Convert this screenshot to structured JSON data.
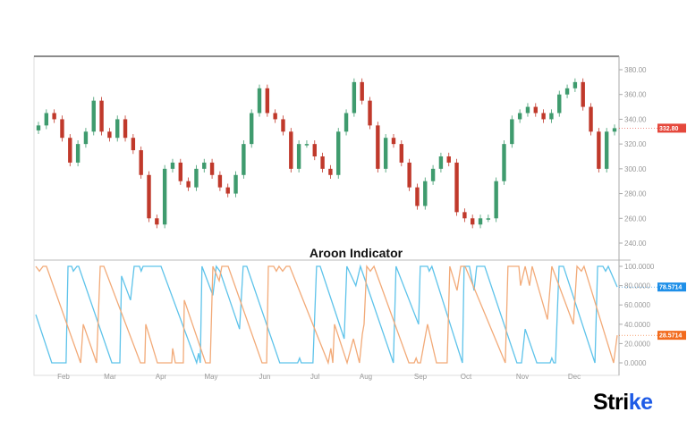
{
  "logo": {
    "text": "Strike",
    "accent_color": "#1e5be6"
  },
  "chart_data": [
    {
      "type": "candlestick",
      "title": "",
      "x_ticks": [
        "Feb",
        "Mar",
        "Apr",
        "May",
        "Jun",
        "Jul",
        "Aug",
        "Sep",
        "Oct",
        "Nov",
        "Dec"
      ],
      "y_ticks": [
        "380.00",
        "360.00",
        "340.00",
        "320.00",
        "300.00",
        "280.00",
        "260.00",
        "240.00"
      ],
      "ylim": [
        232,
        388
      ],
      "last_price_label": "332.80",
      "colors": {
        "up": "#3f9b6e",
        "down": "#c0392b",
        "last_tag": "#e5483c"
      },
      "closes": [
        335,
        345,
        340,
        325,
        305,
        320,
        330,
        355,
        330,
        325,
        340,
        325,
        315,
        295,
        260,
        255,
        300,
        305,
        290,
        285,
        300,
        305,
        295,
        285,
        280,
        295,
        320,
        345,
        365,
        345,
        340,
        330,
        300,
        320,
        320,
        310,
        300,
        295,
        330,
        345,
        370,
        355,
        335,
        300,
        325,
        320,
        305,
        285,
        270,
        290,
        300,
        310,
        305,
        265,
        260,
        255,
        260,
        260,
        290,
        320,
        340,
        345,
        350,
        345,
        340,
        345,
        360,
        365,
        370,
        350,
        330,
        300,
        330,
        332.8
      ]
    },
    {
      "type": "line",
      "title": "Aroon Indicator",
      "x_ticks": [
        "Feb",
        "Mar",
        "Apr",
        "May",
        "Jun",
        "Jul",
        "Aug",
        "Sep",
        "Oct",
        "Nov",
        "Dec"
      ],
      "y_ticks": [
        "100.0000",
        "80.0000",
        "60.0000",
        "40.0000",
        "20.0000",
        "0.0000"
      ],
      "ylim": [
        0,
        100
      ],
      "series": [
        {
          "color": "#5ec3ea",
          "last_label": "78.5714",
          "tag_color": "#1e8fe8",
          "points": [
            [
              0,
              50
            ],
            [
              6.6,
              0
            ],
            [
              12.5,
              0
            ],
            [
              13.3,
              100
            ],
            [
              14.8,
              100
            ],
            [
              15.5,
              95
            ],
            [
              17,
              100
            ],
            [
              17.7,
              100
            ],
            [
              31.4,
              0
            ],
            [
              34.7,
              0
            ],
            [
              35.4,
              90
            ],
            [
              39.1,
              65
            ],
            [
              40.6,
              100
            ],
            [
              42.8,
              100
            ],
            [
              43.5,
              95
            ],
            [
              44.3,
              100
            ],
            [
              51.7,
              100
            ],
            [
              66.4,
              0
            ],
            [
              67.2,
              10
            ],
            [
              67.9,
              0
            ],
            [
              68.6,
              100
            ],
            [
              73.1,
              70
            ],
            [
              74.5,
              100
            ],
            [
              76,
              95
            ],
            [
              84.1,
              35
            ],
            [
              85.6,
              100
            ],
            [
              87.1,
              100
            ],
            [
              100.7,
              0
            ],
            [
              108.1,
              0
            ],
            [
              108.9,
              5
            ],
            [
              109.6,
              0
            ],
            [
              114.4,
              0
            ],
            [
              115.9,
              100
            ],
            [
              117.4,
              100
            ],
            [
              127.3,
              25
            ],
            [
              128.4,
              100
            ],
            [
              132.1,
              80
            ],
            [
              134,
              100
            ],
            [
              147.6,
              0
            ],
            [
              148.7,
              100
            ],
            [
              158,
              40
            ],
            [
              158.7,
              100
            ],
            [
              161.7,
              100
            ],
            [
              162.4,
              95
            ],
            [
              163.5,
              100
            ],
            [
              176.1,
              0
            ],
            [
              176.8,
              100
            ],
            [
              179,
              100
            ],
            [
              180.9,
              75
            ],
            [
              182,
              100
            ],
            [
              185.3,
              100
            ],
            [
              198.6,
              0
            ],
            [
              200.5,
              0
            ],
            [
              202,
              35
            ],
            [
              206.8,
              0
            ],
            [
              212.3,
              0
            ],
            [
              213,
              5
            ],
            [
              213.8,
              0
            ],
            [
              214.5,
              0
            ],
            [
              216,
              100
            ],
            [
              217.8,
              100
            ],
            [
              230.8,
              0
            ],
            [
              231.9,
              100
            ],
            [
              234.1,
              100
            ],
            [
              235.2,
              95
            ],
            [
              236.3,
              100
            ],
            [
              240,
              78.57
            ]
          ]
        },
        {
          "color": "#f2aa78",
          "last_label": "28.5714",
          "tag_color": "#f26b1d",
          "points": [
            [
              0,
              100
            ],
            [
              1.5,
              95
            ],
            [
              3,
              100
            ],
            [
              4.4,
              100
            ],
            [
              18.5,
              0
            ],
            [
              19.6,
              40
            ],
            [
              25.1,
              0
            ],
            [
              26.6,
              100
            ],
            [
              28.1,
              100
            ],
            [
              43.2,
              0
            ],
            [
              45,
              0
            ],
            [
              45.4,
              40
            ],
            [
              50.2,
              0
            ],
            [
              56.1,
              0
            ],
            [
              56.5,
              15
            ],
            [
              57.6,
              0
            ],
            [
              60.9,
              0
            ],
            [
              61.3,
              65
            ],
            [
              70.1,
              0
            ],
            [
              72,
              0
            ],
            [
              73.1,
              100
            ],
            [
              75.7,
              85
            ],
            [
              76.8,
              100
            ],
            [
              79.4,
              100
            ],
            [
              93.4,
              0
            ],
            [
              95.3,
              0
            ],
            [
              96,
              100
            ],
            [
              98.2,
              100
            ],
            [
              99.3,
              95
            ],
            [
              100.4,
              100
            ],
            [
              101.9,
              95
            ],
            [
              103.4,
              100
            ],
            [
              104.8,
              100
            ],
            [
              120.7,
              0
            ],
            [
              121.8,
              15
            ],
            [
              122.6,
              0
            ],
            [
              123.3,
              40
            ],
            [
              128.5,
              0
            ],
            [
              131.1,
              25
            ],
            [
              133.6,
              0
            ],
            [
              134.8,
              30
            ],
            [
              135.5,
              40
            ],
            [
              136.6,
              100
            ],
            [
              138.1,
              95
            ],
            [
              139.6,
              100
            ],
            [
              154,
              0
            ],
            [
              156.2,
              0
            ],
            [
              157,
              5
            ],
            [
              157.7,
              0
            ],
            [
              158.8,
              0
            ],
            [
              161.7,
              40
            ],
            [
              165.4,
              0
            ],
            [
              169.8,
              0
            ],
            [
              170.9,
              100
            ],
            [
              173.9,
              75
            ],
            [
              175.4,
              100
            ],
            [
              177.2,
              100
            ],
            [
              193.8,
              0
            ],
            [
              194.9,
              100
            ],
            [
              199.4,
              100
            ],
            [
              200.1,
              80
            ],
            [
              202,
              100
            ],
            [
              203.8,
              80
            ],
            [
              204.9,
              100
            ],
            [
              211.2,
              45
            ],
            [
              213,
              100
            ],
            [
              221.9,
              40
            ],
            [
              223.4,
              100
            ],
            [
              225.2,
              95
            ],
            [
              226.3,
              100
            ],
            [
              238.5,
              0
            ],
            [
              240,
              28.57
            ]
          ]
        }
      ]
    }
  ]
}
